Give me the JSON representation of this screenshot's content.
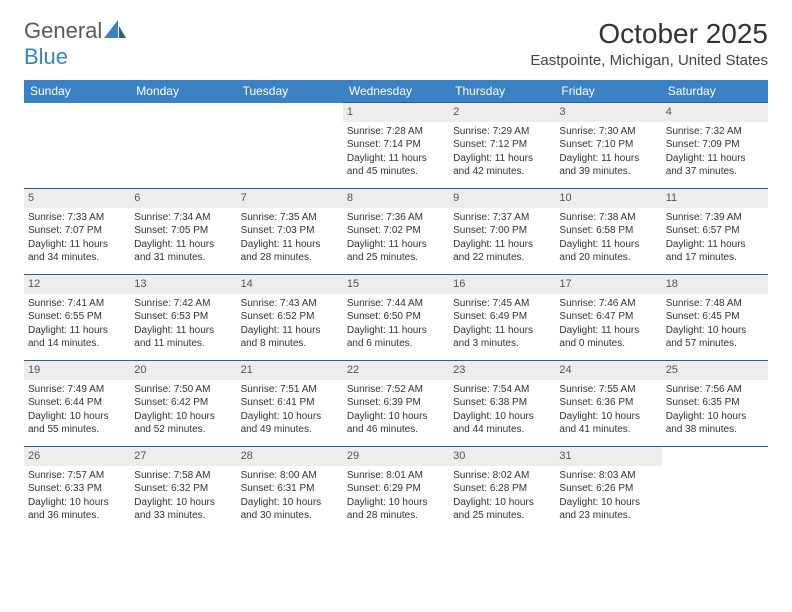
{
  "logo": {
    "part1": "General",
    "part2": "Blue"
  },
  "title": "October 2025",
  "location": "Eastpointe, Michigan, United States",
  "colors": {
    "header_bg": "#3b82c4",
    "header_text": "#ffffff",
    "day_bg": "#ededed",
    "row_border": "#2f5b86",
    "logo_gray": "#5a5a5a",
    "logo_blue": "#3b82c4"
  },
  "weekdays": [
    "Sunday",
    "Monday",
    "Tuesday",
    "Wednesday",
    "Thursday",
    "Friday",
    "Saturday"
  ],
  "weeks": [
    [
      null,
      null,
      null,
      {
        "d": "1",
        "sr": "Sunrise: 7:28 AM",
        "ss": "Sunset: 7:14 PM",
        "dl1": "Daylight: 11 hours",
        "dl2": "and 45 minutes."
      },
      {
        "d": "2",
        "sr": "Sunrise: 7:29 AM",
        "ss": "Sunset: 7:12 PM",
        "dl1": "Daylight: 11 hours",
        "dl2": "and 42 minutes."
      },
      {
        "d": "3",
        "sr": "Sunrise: 7:30 AM",
        "ss": "Sunset: 7:10 PM",
        "dl1": "Daylight: 11 hours",
        "dl2": "and 39 minutes."
      },
      {
        "d": "4",
        "sr": "Sunrise: 7:32 AM",
        "ss": "Sunset: 7:09 PM",
        "dl1": "Daylight: 11 hours",
        "dl2": "and 37 minutes."
      }
    ],
    [
      {
        "d": "5",
        "sr": "Sunrise: 7:33 AM",
        "ss": "Sunset: 7:07 PM",
        "dl1": "Daylight: 11 hours",
        "dl2": "and 34 minutes."
      },
      {
        "d": "6",
        "sr": "Sunrise: 7:34 AM",
        "ss": "Sunset: 7:05 PM",
        "dl1": "Daylight: 11 hours",
        "dl2": "and 31 minutes."
      },
      {
        "d": "7",
        "sr": "Sunrise: 7:35 AM",
        "ss": "Sunset: 7:03 PM",
        "dl1": "Daylight: 11 hours",
        "dl2": "and 28 minutes."
      },
      {
        "d": "8",
        "sr": "Sunrise: 7:36 AM",
        "ss": "Sunset: 7:02 PM",
        "dl1": "Daylight: 11 hours",
        "dl2": "and 25 minutes."
      },
      {
        "d": "9",
        "sr": "Sunrise: 7:37 AM",
        "ss": "Sunset: 7:00 PM",
        "dl1": "Daylight: 11 hours",
        "dl2": "and 22 minutes."
      },
      {
        "d": "10",
        "sr": "Sunrise: 7:38 AM",
        "ss": "Sunset: 6:58 PM",
        "dl1": "Daylight: 11 hours",
        "dl2": "and 20 minutes."
      },
      {
        "d": "11",
        "sr": "Sunrise: 7:39 AM",
        "ss": "Sunset: 6:57 PM",
        "dl1": "Daylight: 11 hours",
        "dl2": "and 17 minutes."
      }
    ],
    [
      {
        "d": "12",
        "sr": "Sunrise: 7:41 AM",
        "ss": "Sunset: 6:55 PM",
        "dl1": "Daylight: 11 hours",
        "dl2": "and 14 minutes."
      },
      {
        "d": "13",
        "sr": "Sunrise: 7:42 AM",
        "ss": "Sunset: 6:53 PM",
        "dl1": "Daylight: 11 hours",
        "dl2": "and 11 minutes."
      },
      {
        "d": "14",
        "sr": "Sunrise: 7:43 AM",
        "ss": "Sunset: 6:52 PM",
        "dl1": "Daylight: 11 hours",
        "dl2": "and 8 minutes."
      },
      {
        "d": "15",
        "sr": "Sunrise: 7:44 AM",
        "ss": "Sunset: 6:50 PM",
        "dl1": "Daylight: 11 hours",
        "dl2": "and 6 minutes."
      },
      {
        "d": "16",
        "sr": "Sunrise: 7:45 AM",
        "ss": "Sunset: 6:49 PM",
        "dl1": "Daylight: 11 hours",
        "dl2": "and 3 minutes."
      },
      {
        "d": "17",
        "sr": "Sunrise: 7:46 AM",
        "ss": "Sunset: 6:47 PM",
        "dl1": "Daylight: 11 hours",
        "dl2": "and 0 minutes."
      },
      {
        "d": "18",
        "sr": "Sunrise: 7:48 AM",
        "ss": "Sunset: 6:45 PM",
        "dl1": "Daylight: 10 hours",
        "dl2": "and 57 minutes."
      }
    ],
    [
      {
        "d": "19",
        "sr": "Sunrise: 7:49 AM",
        "ss": "Sunset: 6:44 PM",
        "dl1": "Daylight: 10 hours",
        "dl2": "and 55 minutes."
      },
      {
        "d": "20",
        "sr": "Sunrise: 7:50 AM",
        "ss": "Sunset: 6:42 PM",
        "dl1": "Daylight: 10 hours",
        "dl2": "and 52 minutes."
      },
      {
        "d": "21",
        "sr": "Sunrise: 7:51 AM",
        "ss": "Sunset: 6:41 PM",
        "dl1": "Daylight: 10 hours",
        "dl2": "and 49 minutes."
      },
      {
        "d": "22",
        "sr": "Sunrise: 7:52 AM",
        "ss": "Sunset: 6:39 PM",
        "dl1": "Daylight: 10 hours",
        "dl2": "and 46 minutes."
      },
      {
        "d": "23",
        "sr": "Sunrise: 7:54 AM",
        "ss": "Sunset: 6:38 PM",
        "dl1": "Daylight: 10 hours",
        "dl2": "and 44 minutes."
      },
      {
        "d": "24",
        "sr": "Sunrise: 7:55 AM",
        "ss": "Sunset: 6:36 PM",
        "dl1": "Daylight: 10 hours",
        "dl2": "and 41 minutes."
      },
      {
        "d": "25",
        "sr": "Sunrise: 7:56 AM",
        "ss": "Sunset: 6:35 PM",
        "dl1": "Daylight: 10 hours",
        "dl2": "and 38 minutes."
      }
    ],
    [
      {
        "d": "26",
        "sr": "Sunrise: 7:57 AM",
        "ss": "Sunset: 6:33 PM",
        "dl1": "Daylight: 10 hours",
        "dl2": "and 36 minutes."
      },
      {
        "d": "27",
        "sr": "Sunrise: 7:58 AM",
        "ss": "Sunset: 6:32 PM",
        "dl1": "Daylight: 10 hours",
        "dl2": "and 33 minutes."
      },
      {
        "d": "28",
        "sr": "Sunrise: 8:00 AM",
        "ss": "Sunset: 6:31 PM",
        "dl1": "Daylight: 10 hours",
        "dl2": "and 30 minutes."
      },
      {
        "d": "29",
        "sr": "Sunrise: 8:01 AM",
        "ss": "Sunset: 6:29 PM",
        "dl1": "Daylight: 10 hours",
        "dl2": "and 28 minutes."
      },
      {
        "d": "30",
        "sr": "Sunrise: 8:02 AM",
        "ss": "Sunset: 6:28 PM",
        "dl1": "Daylight: 10 hours",
        "dl2": "and 25 minutes."
      },
      {
        "d": "31",
        "sr": "Sunrise: 8:03 AM",
        "ss": "Sunset: 6:26 PM",
        "dl1": "Daylight: 10 hours",
        "dl2": "and 23 minutes."
      },
      null
    ]
  ]
}
